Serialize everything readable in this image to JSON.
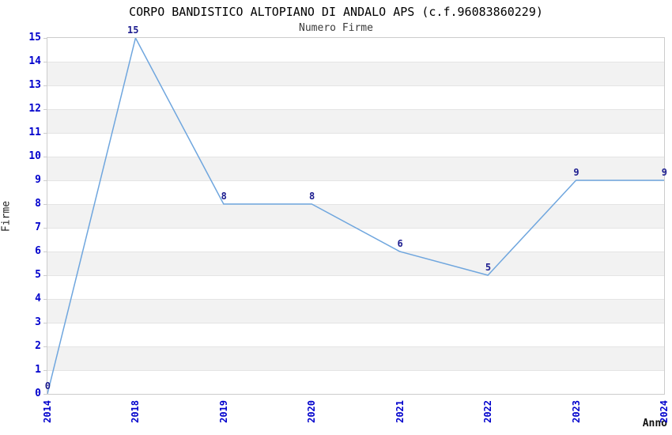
{
  "chart_data": {
    "type": "line",
    "title": "CORPO BANDISTICO ALTOPIANO DI ANDALO APS (c.f.96083860229)",
    "subtitle": "Numero Firme",
    "xlabel": "Anno",
    "ylabel": "Firme",
    "categories": [
      "2014",
      "2018",
      "2019",
      "2020",
      "2021",
      "2022",
      "2023",
      "2024"
    ],
    "values": [
      0,
      15,
      8,
      8,
      6,
      5,
      9,
      9
    ],
    "point_labels": [
      "0",
      "15",
      "8",
      "8",
      "6",
      "5",
      "9",
      "9"
    ],
    "ylim": [
      0,
      15
    ],
    "ytick_step": 1,
    "yticks": [
      "0",
      "1",
      "2",
      "3",
      "4",
      "5",
      "6",
      "7",
      "8",
      "9",
      "10",
      "11",
      "12",
      "13",
      "14",
      "15"
    ],
    "legend": "none",
    "grid": "alternating horizontal bands every 1 unit",
    "colors": {
      "line": "#6fa6de",
      "tick_label": "#0000cc",
      "data_label": "#1c1c8f",
      "band": "#f2f2f2",
      "band_edge": "#e4e4e4",
      "plot_border": "#cccccc",
      "title": "#000000",
      "subtitle": "#3c3c3c"
    }
  }
}
